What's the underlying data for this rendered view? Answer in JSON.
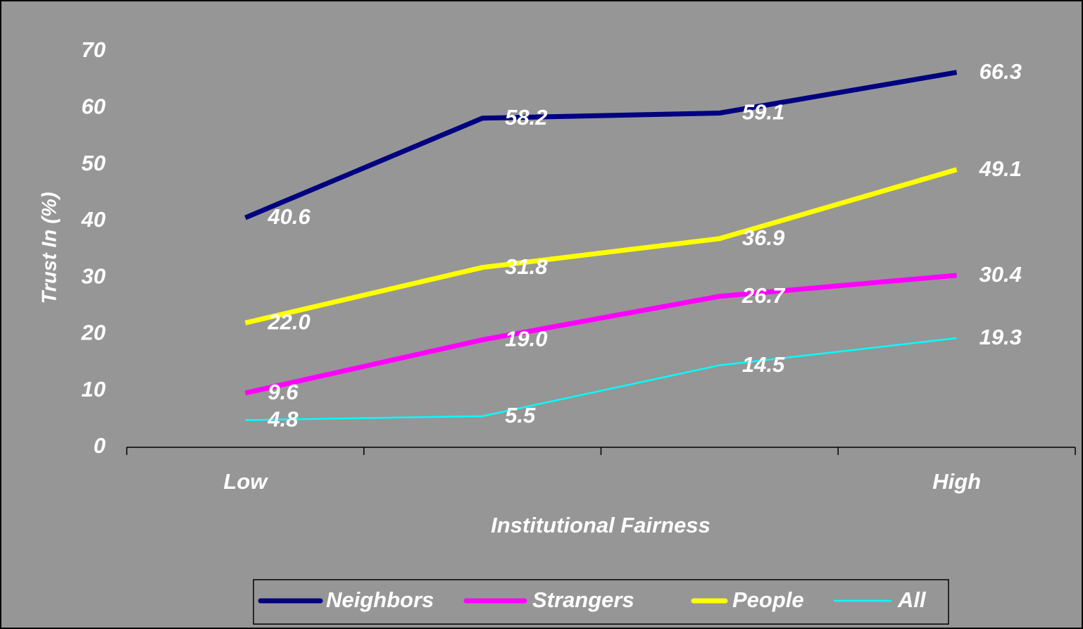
{
  "chart_data": {
    "type": "line",
    "x_label": "Institutional Fairness",
    "y_label": "Trust In (%)",
    "categories": [
      "Low",
      null,
      null,
      "High"
    ],
    "ylim": [
      0,
      70
    ],
    "yticks": [
      0,
      10,
      20,
      30,
      40,
      50,
      60,
      70
    ],
    "grid": false,
    "legend": "bottom",
    "series": [
      {
        "name": "Neighbors",
        "color": "#000080",
        "values": [
          40.6,
          58.2,
          59.1,
          66.3
        ],
        "value_labels": [
          "40.6",
          "58.2",
          "59.1",
          "66.3"
        ]
      },
      {
        "name": "Strangers",
        "color": "#ff00ff",
        "values": [
          9.6,
          19.0,
          26.7,
          30.4
        ],
        "value_labels": [
          "9.6",
          "19.0",
          "26.7",
          "30.4"
        ]
      },
      {
        "name": "People",
        "color": "#ffff00",
        "values": [
          22.0,
          31.8,
          36.9,
          49.1
        ],
        "value_labels": [
          "22.0",
          "31.8",
          "36.9",
          "49.1"
        ]
      },
      {
        "name": "All",
        "color": "#00ffff",
        "values": [
          4.8,
          5.5,
          14.5,
          19.3
        ],
        "value_labels": [
          "4.8",
          "5.5",
          "14.5",
          "19.3"
        ]
      }
    ]
  }
}
